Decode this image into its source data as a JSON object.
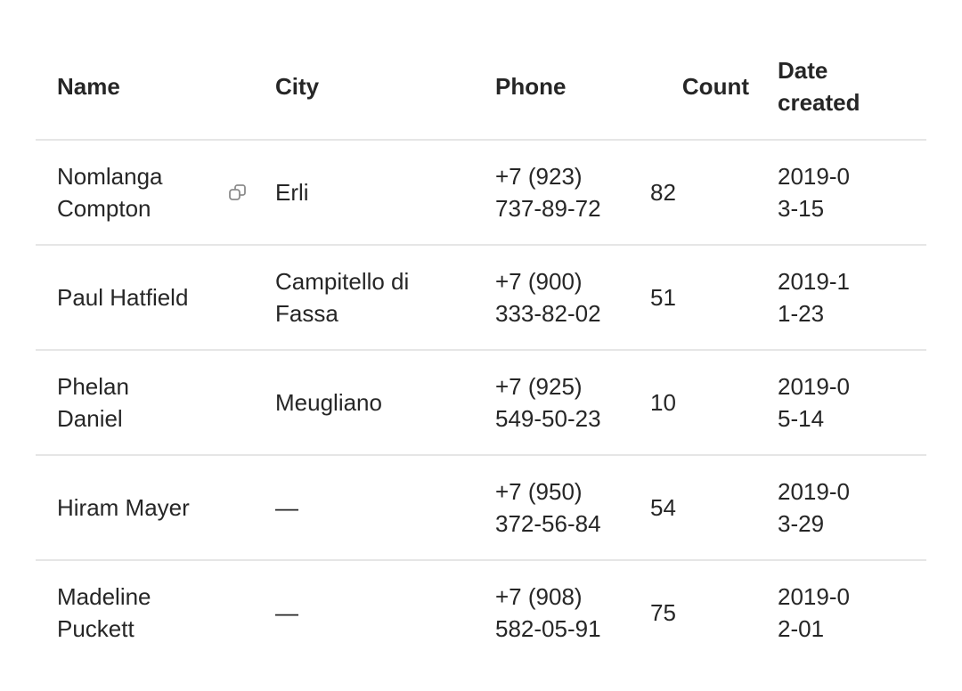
{
  "table": {
    "headers": {
      "name": "Name",
      "city": "City",
      "phone": "Phone",
      "count": "Count",
      "date": "Date created"
    },
    "rows": [
      {
        "name": "Nomlanga Compton",
        "city": "Erli",
        "phone": "+7 (923) 737-89-72",
        "count": "82",
        "date": "2019-03-15",
        "has_copy_icon": true
      },
      {
        "name": "Paul Hatfield",
        "city": "Campitello di Fassa",
        "phone": "+7 (900) 333-82-02",
        "count": "51",
        "date": "2019-11-23"
      },
      {
        "name": "Phelan Daniel",
        "city": "Meugliano",
        "phone": "+7 (925) 549-50-23",
        "count": "10",
        "date": "2019-05-14"
      },
      {
        "name": "Hiram Mayer",
        "city": "—",
        "phone": "+7 (950) 372-56-84",
        "count": "54",
        "date": "2019-03-29"
      },
      {
        "name": "Madeline Puckett",
        "city": "—",
        "phone": "+7 (908) 582-05-91",
        "count": "75",
        "date": "2019-02-01"
      }
    ]
  },
  "icons": {
    "copy": "copy-icon"
  },
  "colors": {
    "text": "#262626",
    "divider": "#e6e6e6",
    "icon": "#8c8c8c"
  }
}
